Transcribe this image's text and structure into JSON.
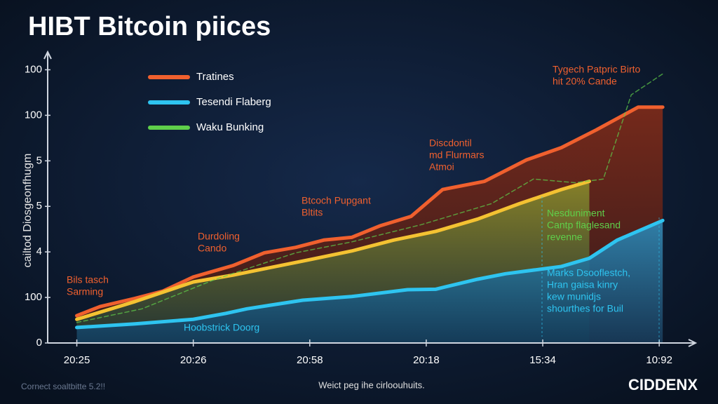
{
  "chart_data": {
    "type": "line",
    "title": "HIBT Bitcoin piices",
    "y_label": "cailtod Diosgeonfhugm",
    "xlim": [
      -0.25,
      5.3
    ],
    "ylim": [
      0,
      6.3
    ],
    "xticks": [
      {
        "value": 0,
        "label": "20:25"
      },
      {
        "value": 1,
        "label": "20:26"
      },
      {
        "value": 2,
        "label": "20:58"
      },
      {
        "value": 3,
        "label": "20:18"
      },
      {
        "value": 4,
        "label": "15:34"
      },
      {
        "value": 5,
        "label": "10:92"
      }
    ],
    "yticks": [
      0,
      {
        "value": 1,
        "label": "100"
      },
      {
        "value": 2,
        "label": "4"
      },
      {
        "value": 3,
        "label": "5"
      },
      {
        "value": 4,
        "label": "5"
      },
      {
        "value": 5,
        "label": "100"
      },
      {
        "value": 6,
        "label": "100"
      }
    ],
    "series": [
      {
        "name": "Tratines",
        "color": "#f0602e",
        "x": [
          0,
          0.2,
          0.5,
          0.74,
          1.0,
          1.34,
          1.61,
          1.88,
          2.12,
          2.36,
          2.6,
          2.87,
          3.14,
          3.5,
          3.86,
          4.16,
          4.46,
          4.82,
          5.03
        ],
        "values": [
          0.6,
          0.8,
          0.98,
          1.14,
          1.45,
          1.7,
          1.98,
          2.1,
          2.26,
          2.32,
          2.57,
          2.78,
          3.37,
          3.55,
          4.02,
          4.29,
          4.68,
          5.18,
          5.18
        ]
      },
      {
        "color": "#f4c232",
        "x": [
          0,
          0.5,
          1.0,
          1.34,
          1.61,
          2.0,
          2.36,
          2.72,
          3.08,
          3.44,
          3.8,
          4.16,
          4.4
        ],
        "values": [
          0.52,
          0.91,
          1.34,
          1.49,
          1.63,
          1.83,
          2.02,
          2.26,
          2.45,
          2.72,
          3.06,
          3.37,
          3.55
        ]
      },
      {
        "name": "Tesendi Flaberg",
        "color": "#2ec4f0",
        "x": [
          0,
          0.5,
          1.0,
          1.28,
          1.46,
          1.94,
          2.36,
          2.84,
          3.08,
          3.44,
          3.68,
          4.16,
          4.4,
          4.64,
          5.03
        ],
        "values": [
          0.34,
          0.42,
          0.52,
          0.65,
          0.75,
          0.94,
          1.02,
          1.17,
          1.18,
          1.4,
          1.52,
          1.68,
          1.86,
          2.26,
          2.69
        ]
      },
      {
        "name": "Waku Bunking",
        "color": "#5fcf4a",
        "dashed": true,
        "x": [
          0,
          0.56,
          1.16,
          1.52,
          1.88,
          2.36,
          2.96,
          3.56,
          3.92,
          4.28,
          4.52,
          4.76,
          5.03
        ],
        "values": [
          0.45,
          0.75,
          1.37,
          1.68,
          1.98,
          2.22,
          2.6,
          3.06,
          3.6,
          3.52,
          3.6,
          5.45,
          5.91
        ]
      }
    ],
    "annotations": [
      {
        "lines": [
          "Tygech Patpric Birto",
          "hit 20% Cande"
        ],
        "color": "#f0602e"
      },
      {
        "lines": [
          "Discdontil",
          "md Flurmars",
          "Atmoi"
        ],
        "color": "#f0602e"
      },
      {
        "lines": [
          "Btcoch Pupgant",
          "Bltits"
        ],
        "color": "#f0602e"
      },
      {
        "lines": [
          "Durdoling",
          "Cando"
        ],
        "color": "#f0602e"
      },
      {
        "lines": [
          "Bils tasch",
          "Sarming"
        ],
        "color": "#f0602e"
      },
      {
        "lines": [
          "Hoobstrick Doorg"
        ],
        "color": "#2ec4f0"
      },
      {
        "lines": [
          "Nesduniment",
          "Cantp flaglesand",
          "revenne"
        ],
        "color": "#5fcf4a"
      },
      {
        "lines": [
          "Marks Dsooflestch,",
          "Hran gaisa kinry",
          "kew munidjs",
          "shourthes for Buil"
        ],
        "color": "#2ec4f0"
      }
    ],
    "footer_left": "Cornect soaltbitte 5.2!!",
    "footer_center": "Weict peg ihe cirloouhuits.",
    "logo": "CIDDENX"
  }
}
